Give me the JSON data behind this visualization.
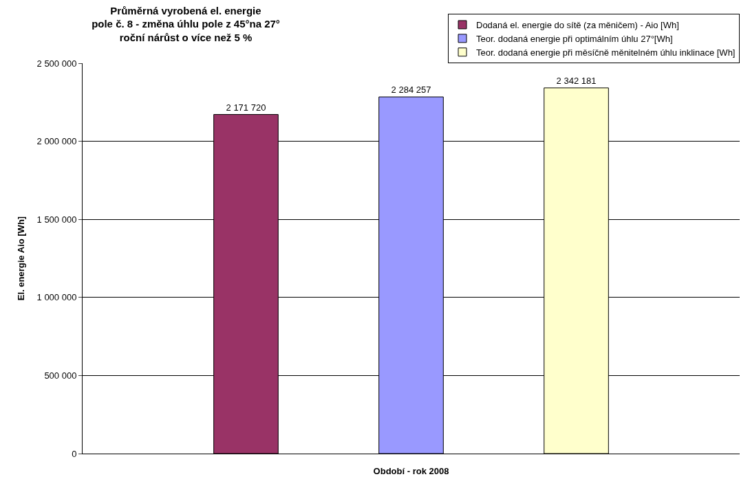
{
  "chart_data": {
    "type": "bar",
    "title": "Průměrná vyrobená el. energie\npole č. 8 - změna úhlu pole z 45°na 27°\nroční nárůst o více než 5 %",
    "xlabel": "Období - rok 2008",
    "ylabel": "El. energie Aio [Wh]",
    "categories": [
      null
    ],
    "series": [
      {
        "name": "Dodaná el. energie do sítě (za měničem) - Aio [Wh]",
        "color": "#993366",
        "values": [
          2171720
        ],
        "value_labels": [
          "2 171 720"
        ]
      },
      {
        "name": "Teor. dodaná energie při optimálním úhlu 27°[Wh]",
        "color": "#9999ff",
        "values": [
          2284257
        ],
        "value_labels": [
          "2 284 257"
        ]
      },
      {
        "name": "Teor. dodaná energie při měsíčně měnitelném úhlu inklinace [Wh]",
        "color": "#ffffcc",
        "values": [
          2342181
        ],
        "value_labels": [
          "2 342 181"
        ]
      }
    ],
    "ylim": [
      0,
      2500000
    ],
    "yticks": [
      0,
      {
        "value": 500000,
        "label": "500 000"
      },
      {
        "value": 1000000,
        "label": "1 000 000"
      },
      {
        "value": 1500000,
        "label": "1 500 000"
      },
      {
        "value": 2000000,
        "label": "2 000 000"
      },
      {
        "value": 2500000,
        "label": "2 500 000"
      }
    ],
    "grid": "y",
    "legend": "top right"
  }
}
